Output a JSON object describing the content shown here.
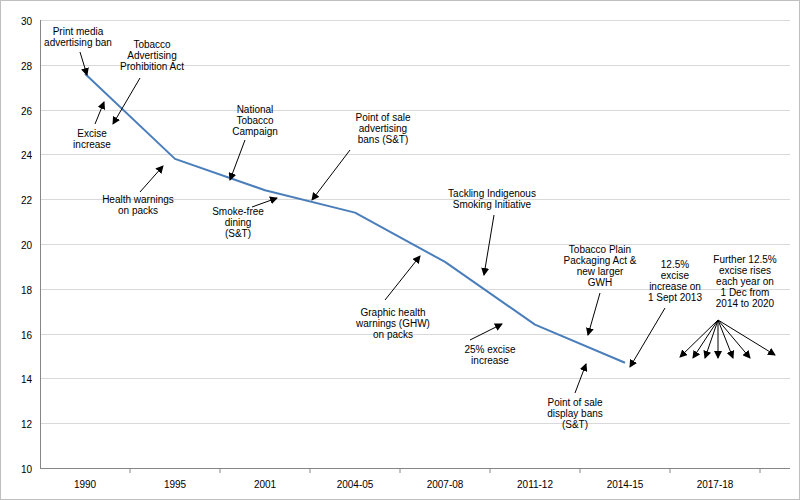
{
  "chart_data": {
    "type": "line",
    "categories": [
      "1990",
      "1995",
      "2001",
      "2004-05",
      "2007-08",
      "2011-12",
      "2014-15",
      "2017-18"
    ],
    "values": [
      27.6,
      23.8,
      22.4,
      21.4,
      19.2,
      16.4,
      14.7,
      null
    ],
    "color": "#4a7ebb",
    "ylim": [
      10,
      30
    ],
    "yticks": [
      10,
      12,
      14,
      16,
      18,
      20,
      22,
      24,
      26,
      28,
      30
    ],
    "grid": true,
    "annotations": [
      "Print media\nadvertising ban",
      "Tobacco\nAdvertising\nProhibition Act",
      "Excise\nincrease",
      "Health warnings\non packs",
      "National\nTobacco\nCampaign",
      "Smoke-free\ndining\n(S&T)",
      "Point of sale\nadvertising\nbans (S&T)",
      "Graphic health\nwarnings (GHW)\non packs",
      "Tackling Indigenous\nSmoking Initiative",
      "25% excise\nincrease",
      "Tobacco Plain\nPackaging Act &\nnew larger\nGWH",
      "Point of sale\ndisplay bans\n(S&T)",
      "12.5%\nexcise\nincrease on\n1 Sept 2013",
      "Further 12.5%\nexcise rises\neach year on\n1 Dec from\n2014 to 2020"
    ]
  }
}
